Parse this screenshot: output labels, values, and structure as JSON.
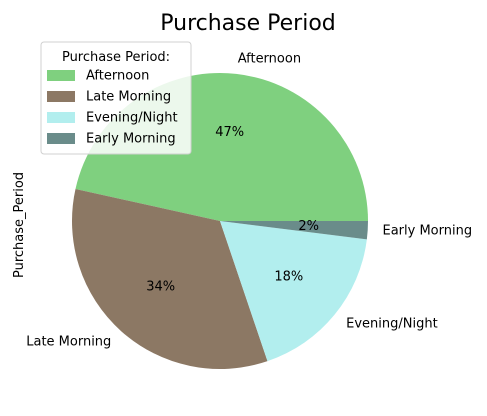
{
  "chart_data": {
    "type": "pie",
    "title": "Purchase Period",
    "ylabel": "Purchase_Period",
    "legend": {
      "title": "Purchase Period:",
      "placement": "upper-left"
    },
    "categories": [
      "Afternoon",
      "Late Morning",
      "Evening/Night",
      "Early Morning"
    ],
    "values": [
      47,
      34,
      18,
      2
    ],
    "percent_labels": [
      "47%",
      "34%",
      "18%",
      "2%"
    ],
    "colors": [
      "#7fd07f",
      "#8c7864",
      "#b2eeee",
      "#6a8c8a"
    ],
    "start_angle_deg": 0,
    "direction": "counterclockwise"
  }
}
